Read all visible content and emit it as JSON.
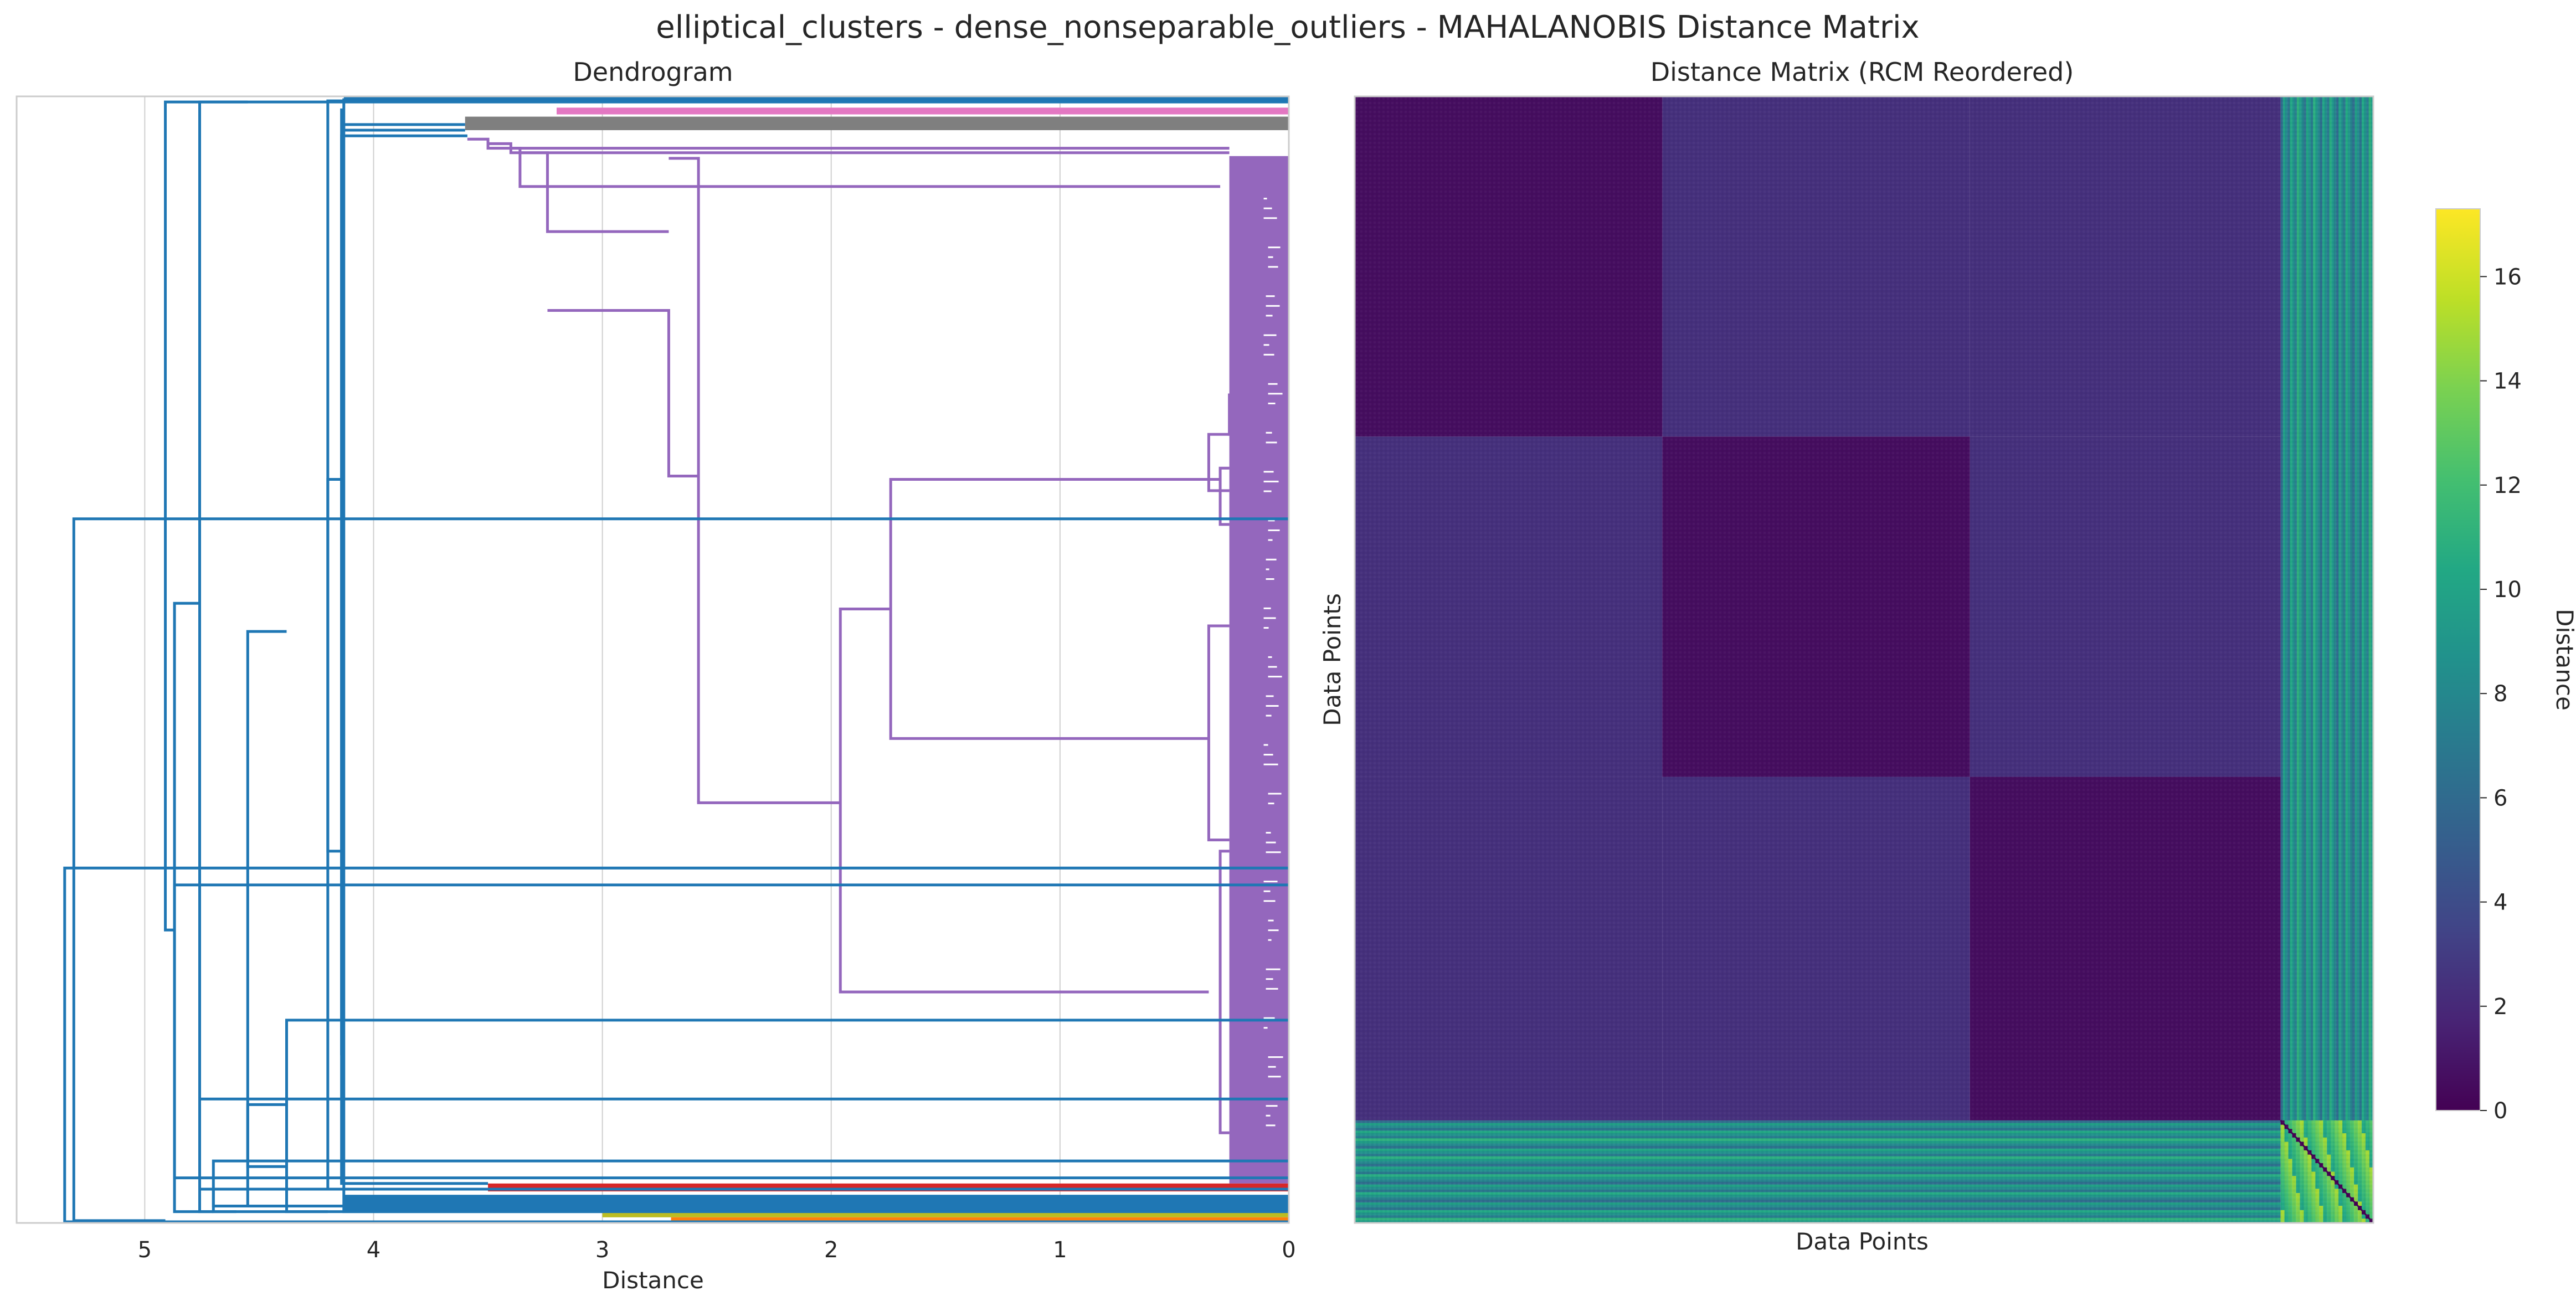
{
  "figure": {
    "suptitle": "elliptical_clusters - dense_nonseparable_outliers - MAHALANOBIS Distance Matrix"
  },
  "colors": {
    "axes_edge": "#cccccc",
    "grid": "#d0d0d0",
    "dendro_blue": "#1f77b4",
    "dendro_purple": "#9467bd",
    "dendro_red": "#d62728",
    "dendro_pink": "#e377c2",
    "dendro_gray": "#7f7f7f",
    "dendro_olive": "#bcbd22",
    "dendro_orange": "#ff7f0e"
  },
  "chart_data": [
    {
      "type": "dendrogram",
      "title": "Dendrogram",
      "xlabel": "Distance",
      "ylabel": "",
      "orientation": "left",
      "xlim": [
        5.56,
        0
      ],
      "xticks": [
        5,
        4,
        3,
        2,
        1,
        0
      ],
      "xtick_labels": [
        "5",
        "4",
        "3",
        "2",
        "1",
        "0"
      ],
      "grid": true,
      "n_leaves": 1000,
      "outer_merge_heights": [
        5.31,
        4.91,
        4.87,
        4.76,
        4.7,
        4.55,
        4.38,
        4.2,
        4.14
      ],
      "clusters": [
        {
          "color": "purple",
          "leaf_range": [
            0.055,
            0.965
          ],
          "merge_heights": [
            3.59,
            2.71,
            2.58,
            2.26,
            1.74,
            1.96,
            0.35,
            0.3
          ]
        },
        {
          "color": "red",
          "leaf_range": [
            0.965,
            0.972
          ],
          "merge_heights": [
            3.5
          ]
        },
        {
          "color": "pink",
          "leaf_range": [
            0.01,
            0.016
          ],
          "merge_heights": [
            3.2
          ]
        },
        {
          "color": "gray",
          "leaf_range": [
            0.018,
            0.03
          ],
          "merge_heights": [
            3.6
          ]
        },
        {
          "color": "olive",
          "leaf_range": [
            0.99,
            0.995
          ],
          "merge_heights": [
            3.0
          ]
        },
        {
          "color": "orange",
          "leaf_range": [
            0.995,
            0.998
          ],
          "merge_heights": [
            2.7
          ]
        }
      ]
    },
    {
      "type": "heatmap",
      "title": "Distance Matrix (RCM Reordered)",
      "xlabel": "Data Points",
      "ylabel": "Data Points",
      "colormap": "viridis",
      "vmin": 0,
      "vmax": 17.3,
      "n_points": 1000,
      "block_boundaries": [
        0,
        0.302,
        0.604,
        0.909,
        1.0
      ],
      "within_block_distance": 0.6,
      "between_block_distance": 2.4,
      "outlier_to_cluster_distance_range": [
        6,
        11
      ],
      "outlier_to_outlier_distance_range": [
        10,
        15
      ],
      "colorbar": {
        "label": "Distance",
        "ticks": [
          0,
          2,
          4,
          6,
          8,
          10,
          12,
          14,
          16
        ],
        "tick_labels": [
          "0",
          "2",
          "4",
          "6",
          "8",
          "10",
          "12",
          "14",
          "16"
        ]
      }
    }
  ]
}
